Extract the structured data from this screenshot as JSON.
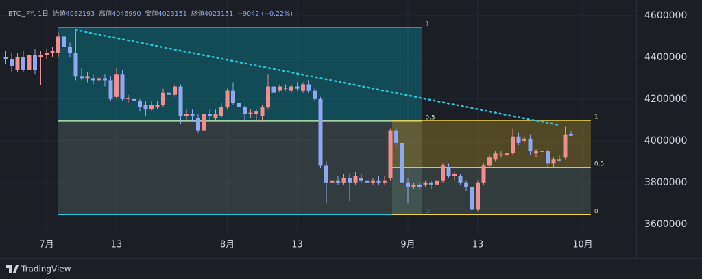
{
  "chart_data": {
    "type": "candlestick",
    "legend": {
      "symbol": "BTC_JPY, 1日",
      "items": [
        {
          "label": "始値",
          "value": 4032193
        },
        {
          "label": "高値",
          "value": 4046990
        },
        {
          "label": "安値",
          "value": 4023151
        },
        {
          "label": "終値",
          "value": 4023151
        }
      ],
      "change": "−9042 (−0.22%)"
    },
    "categories": [
      null,
      null,
      null,
      null,
      null,
      null,
      null,
      "7月",
      null,
      null,
      null,
      null,
      null,
      null,
      null,
      null,
      null,
      null,
      null,
      "13",
      null,
      null,
      null,
      null,
      null,
      null,
      null,
      null,
      null,
      null,
      null,
      null,
      null,
      null,
      null,
      null,
      null,
      null,
      "8月",
      null,
      null,
      null,
      null,
      null,
      null,
      null,
      null,
      null,
      null,
      null,
      "13",
      null,
      null,
      null,
      null,
      null,
      null,
      null,
      null,
      null,
      null,
      null,
      null,
      null,
      null,
      null,
      null,
      null,
      null,
      "9月",
      null,
      null,
      null,
      null,
      null,
      null,
      null,
      null,
      null,
      null,
      null,
      "13",
      null,
      null,
      null,
      null,
      null,
      null,
      null,
      null,
      null,
      null,
      null,
      null,
      null,
      null,
      null,
      null,
      null,
      "10月"
    ],
    "open": [
      4400000,
      4390000,
      4340000,
      4400000,
      4340000,
      4410000,
      4400000,
      4410000,
      4420000,
      4420000,
      4500000,
      4450000,
      4420000,
      4310000,
      4300000,
      4300000,
      4290000,
      4300000,
      4290000,
      4210000,
      4320000,
      4200000,
      4200000,
      4190000,
      4170000,
      4150000,
      4160000,
      4170000,
      4230000,
      4220000,
      4260000,
      4120000,
      4130000,
      4110000,
      4050000,
      4130000,
      4110000,
      4120000,
      4160000,
      4240000,
      4180000,
      4160000,
      4130000,
      4130000,
      4120000,
      4160000,
      4260000,
      4240000,
      4250000,
      4240000,
      4260000,
      4240000,
      4270000,
      4240000,
      4200000,
      3880000,
      3800000,
      3810000,
      3800000,
      3820000,
      3800000,
      3820000,
      3810000,
      3800000,
      3810000,
      3800000,
      3820000,
      4050000,
      3990000,
      3800000,
      3780000,
      3790000,
      3790000,
      3800000,
      3790000,
      3810000,
      3870000,
      3830000,
      3830000,
      3800000,
      3780000,
      3670000,
      3800000,
      3880000,
      3910000,
      3930000,
      3930000,
      3940000,
      4020000,
      4000000,
      4010000,
      3940000,
      3950000,
      3950000,
      3890000,
      3910000,
      3920000,
      4032193,
      null,
      null
    ],
    "high": [
      4430000,
      4420000,
      4420000,
      4430000,
      4430000,
      4440000,
      4430000,
      4440000,
      4450000,
      4520000,
      4530000,
      4470000,
      4530000,
      4350000,
      4330000,
      4320000,
      4360000,
      4320000,
      4310000,
      4350000,
      4340000,
      4220000,
      4220000,
      4200000,
      4190000,
      4190000,
      4190000,
      4250000,
      4260000,
      4270000,
      4270000,
      4150000,
      4150000,
      4130000,
      4150000,
      4150000,
      4150000,
      4180000,
      4250000,
      4280000,
      4200000,
      4170000,
      4150000,
      4150000,
      4170000,
      4320000,
      4290000,
      4270000,
      4270000,
      4270000,
      4280000,
      4280000,
      4290000,
      4250000,
      4210000,
      3900000,
      3830000,
      3830000,
      3840000,
      3840000,
      3850000,
      3840000,
      3830000,
      3820000,
      3830000,
      3830000,
      4060000,
      4060000,
      4000000,
      3820000,
      3800000,
      3800000,
      3810000,
      3810000,
      3820000,
      3890000,
      3890000,
      3850000,
      3840000,
      3810000,
      3790000,
      3810000,
      3890000,
      3930000,
      3950000,
      3950000,
      3960000,
      4060000,
      4040000,
      4020000,
      4030000,
      3960000,
      3970000,
      3960000,
      3920000,
      3930000,
      4070000,
      4046990,
      null,
      null
    ],
    "low": [
      4370000,
      4330000,
      4330000,
      4330000,
      4330000,
      4320000,
      4265000,
      4390000,
      4400000,
      4400000,
      4440000,
      4400000,
      4290000,
      4290000,
      4280000,
      4270000,
      4280000,
      4260000,
      4190000,
      4200000,
      4190000,
      4180000,
      4170000,
      4140000,
      4120000,
      4140000,
      4150000,
      4160000,
      4200000,
      4210000,
      4080000,
      4100000,
      4090000,
      4040000,
      4040000,
      4100000,
      4100000,
      4110000,
      4150000,
      4170000,
      4150000,
      4090000,
      4110000,
      4100000,
      4090000,
      4150000,
      4220000,
      4230000,
      4240000,
      4230000,
      4240000,
      4230000,
      4230000,
      4190000,
      3870000,
      3700000,
      3780000,
      3790000,
      3790000,
      3710000,
      3790000,
      3800000,
      3790000,
      3790000,
      3790000,
      3790000,
      3810000,
      3980000,
      3780000,
      3700000,
      3770000,
      3770000,
      3780000,
      3770000,
      3780000,
      3800000,
      3820000,
      3810000,
      3790000,
      3760000,
      3660000,
      3660000,
      3790000,
      3870000,
      3900000,
      3920000,
      3920000,
      3930000,
      3980000,
      3990000,
      3930000,
      3920000,
      3930000,
      3870000,
      3870000,
      3900000,
      3910000,
      4023151,
      null,
      null
    ],
    "close": [
      4390000,
      4360000,
      4400000,
      4340000,
      4410000,
      4340000,
      4410000,
      4420000,
      4430000,
      4500000,
      4450000,
      4420000,
      4310000,
      4300000,
      4310000,
      4290000,
      4300000,
      4290000,
      4200000,
      4320000,
      4200000,
      4205000,
      4190000,
      4160000,
      4150000,
      4170000,
      4170000,
      4230000,
      4220000,
      4260000,
      4120000,
      4130000,
      4120000,
      4050000,
      4130000,
      4120000,
      4130000,
      4160000,
      4240000,
      4180000,
      4160000,
      4130000,
      4135000,
      4140000,
      4160000,
      4260000,
      4230000,
      4260000,
      4255000,
      4260000,
      4250000,
      4270000,
      4240000,
      4200000,
      3880000,
      3800000,
      3810000,
      3800000,
      3820000,
      3800000,
      3830000,
      3810000,
      3800000,
      3810000,
      3800000,
      3810000,
      4050000,
      3990000,
      3800000,
      3780000,
      3790000,
      3780000,
      3800000,
      3790000,
      3810000,
      3880000,
      3830000,
      3840000,
      3800000,
      3780000,
      3670000,
      3800000,
      3880000,
      3920000,
      3940000,
      3935000,
      3940000,
      4020000,
      3990000,
      4010000,
      3950000,
      3950000,
      3945000,
      3890000,
      3910000,
      3905000,
      4030000,
      4023151,
      null,
      null
    ],
    "up_color": "#ef8f8f",
    "down_color": "#8ea8f2",
    "ylim": [
      3560000,
      4675000
    ],
    "yticks": [
      3600000,
      3800000,
      4000000,
      4200000,
      4400000,
      4600000
    ],
    "grid": true,
    "fib_ranges": [
      {
        "x_range": [
          9,
          71.4
        ],
        "levels": [
          {
            "ratio": 1,
            "price": 4544262
          },
          {
            "ratio": 0.5,
            "price": 4095082
          },
          {
            "ratio": 0,
            "price": 3645902
          }
        ],
        "line_colors": [
          "#26c6da",
          "#b5e3b0",
          "#26c6da"
        ],
        "fill_colors": [
          "rgba(0,170,190,0.32)",
          "rgba(120,150,140,0.25)"
        ]
      },
      {
        "x_range": [
          66.3,
          100.4
        ],
        "levels": [
          {
            "ratio": 1,
            "price": 4098000
          },
          {
            "ratio": 0.5,
            "price": 3872000
          },
          {
            "ratio": 0,
            "price": 3646000
          }
        ],
        "line_colors": [
          "#f0d35a",
          "#b5e3b0",
          "#f0d35a"
        ],
        "fill_colors": [
          "rgba(190,160,40,0.33)",
          "rgba(120,150,130,0.25)"
        ]
      }
    ],
    "trendline": {
      "x": [
        12,
        94.9
      ],
      "y": [
        4531000,
        4075000
      ],
      "color": "#26c6da"
    },
    "footer": "TradingView"
  }
}
